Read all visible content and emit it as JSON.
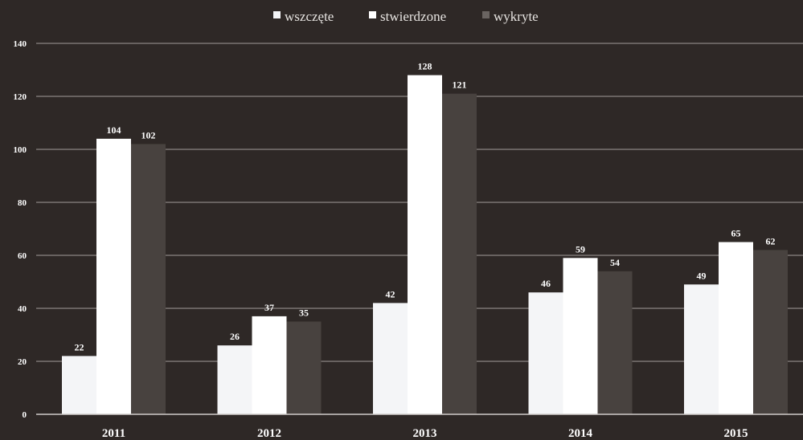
{
  "chart_data": {
    "type": "bar",
    "title": "",
    "xlabel": "",
    "ylabel": "",
    "categories": [
      "2011",
      "2012",
      "2013",
      "2014",
      "2015"
    ],
    "series": [
      {
        "name": "wszczęte",
        "color": "#f4f5f7",
        "values": [
          22,
          26,
          42,
          46,
          49
        ]
      },
      {
        "name": "stwierdzone",
        "color": "#ffffff",
        "values": [
          104,
          37,
          128,
          59,
          65
        ]
      },
      {
        "name": "wykryte",
        "color": "#48423f",
        "values": [
          102,
          35,
          121,
          54,
          62
        ]
      }
    ],
    "ylim": [
      0,
      140
    ],
    "yticks": [
      0,
      20,
      40,
      60,
      80,
      100,
      120,
      140
    ],
    "grid": true,
    "legend_position": "top-center",
    "data_labels": true
  }
}
